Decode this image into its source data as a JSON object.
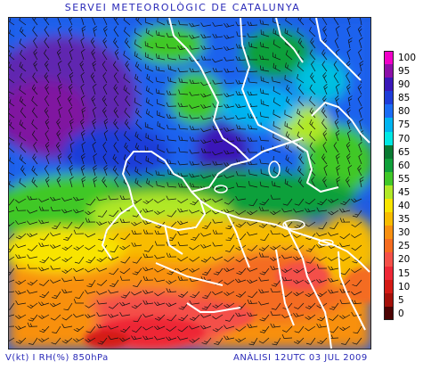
{
  "header": {
    "title": "SERVEI METEOROLÒGIC DE CATALUNYA"
  },
  "footer": {
    "left": "V(kt) I RH(%) 850hPa",
    "right": "ANÀLISI 12UTC 03 JUL 2009"
  },
  "legend": [
    {
      "label": "100",
      "color": "#f000c8"
    },
    {
      "label": "95",
      "color": "#8c10a8"
    },
    {
      "label": "90",
      "color": "#3a18b8"
    },
    {
      "label": "85",
      "color": "#1e3cd8"
    },
    {
      "label": "80",
      "color": "#1a6cf4"
    },
    {
      "label": "75",
      "color": "#00b4f0"
    },
    {
      "label": "70",
      "color": "#00e8e4"
    },
    {
      "label": "65",
      "color": "#0a7a32"
    },
    {
      "label": "60",
      "color": "#10a03a"
    },
    {
      "label": "55",
      "color": "#40c828"
    },
    {
      "label": "45",
      "color": "#b0e828"
    },
    {
      "label": "40",
      "color": "#f8e400"
    },
    {
      "label": "35",
      "color": "#f8bc00"
    },
    {
      "label": "30",
      "color": "#f89010"
    },
    {
      "label": "25",
      "color": "#f46c20"
    },
    {
      "label": "20",
      "color": "#f45048"
    },
    {
      "label": "15",
      "color": "#ee2836"
    },
    {
      "label": "10",
      "color": "#d41a14"
    },
    {
      "label": "5",
      "color": "#a4100a"
    },
    {
      "label": "0",
      "color": "#4c0404"
    }
  ]
}
